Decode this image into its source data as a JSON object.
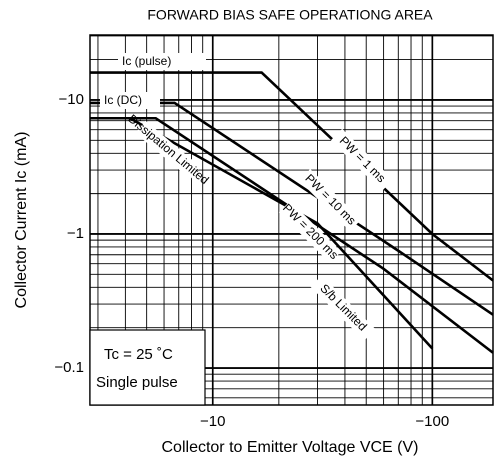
{
  "chart_data": {
    "type": "line",
    "title": "FORWARD BIAS SAFE OPERATIONG AREA",
    "xlabel": "Collector to Emitter Voltage  VCE  (V)",
    "ylabel": "Collector Current  Ic  (mA)",
    "log_x": true,
    "log_y": true,
    "grid": true,
    "xlim": [
      -2.76,
      -189
    ],
    "ylim": [
      -30.5,
      -0.053
    ],
    "xticks": [
      {
        "value": -10,
        "label": "−10"
      },
      {
        "value": -100,
        "label": "−100"
      }
    ],
    "yticks": [
      {
        "value": -10,
        "label": "−10"
      },
      {
        "value": -1,
        "label": "−1"
      },
      {
        "value": -0.1,
        "label": "−0.1"
      }
    ],
    "series": [
      {
        "name": "PW = 1 ms",
        "color": "#000000",
        "x": [
          -2.76,
          -16.7,
          -100,
          -189
        ],
        "values": [
          -16,
          -16,
          -1,
          -0.45
        ]
      },
      {
        "name": "PW = 10 ms",
        "color": "#000000",
        "x": [
          -2.76,
          -6.7,
          -70,
          -189
        ],
        "values": [
          -9.5,
          -9.5,
          -0.75,
          -0.25
        ]
      },
      {
        "name": "PW = 200 ms",
        "color": "#000000",
        "x": [
          -2.76,
          -5.5,
          -60,
          -189
        ],
        "values": [
          -7.3,
          -7.3,
          -0.55,
          -0.13
        ]
      },
      {
        "name": "Dissipation Limited",
        "color": "#000000",
        "x": [
          -2.76,
          -4.2,
          -30,
          -100
        ],
        "values": [
          -7.3,
          -7.3,
          -1.2,
          -0.14
        ]
      }
    ],
    "annotations": [
      "Ic (pulse)",
      "Ic (DC)",
      "S/b Limited",
      "Tc = 25 ˚C",
      "Single pulse"
    ]
  }
}
